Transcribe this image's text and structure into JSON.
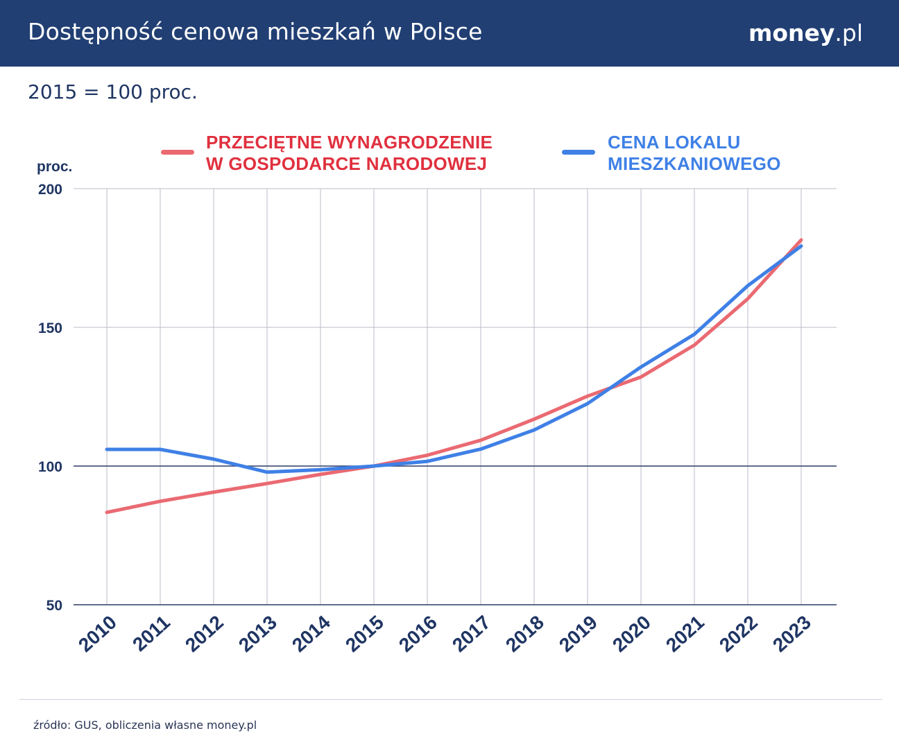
{
  "header": {
    "title": "Dostępność cenowa mieszkań w Polsce",
    "brand_bold": "money",
    "brand_light": ".pl"
  },
  "subtitle": "2015 = 100 proc.",
  "source": "źródło: GUS, obliczenia własne money.pl",
  "colors": {
    "header_bg": "#213f73",
    "wages": "#ea6a72",
    "wages_label": "#e0303e",
    "prices": "#3f80e6",
    "text": "#1f3563"
  },
  "chart_data": {
    "type": "line",
    "ylabel": "proc.",
    "ylim": [
      50,
      200
    ],
    "yticks": [
      50,
      100,
      150,
      200
    ],
    "reference_line": 100,
    "grid": true,
    "legend": "top",
    "x": [
      "2010",
      "2011",
      "2012",
      "2013",
      "2014",
      "2015",
      "2016",
      "2017",
      "2018",
      "2019",
      "2020",
      "2021",
      "2022",
      "2023"
    ],
    "series": [
      {
        "name": "PRZECIĘTNE WYNAGRODZENIE\nW GOSPODARCE NARODOWEJ",
        "color": "#ea6a72",
        "values": [
          83.3,
          87.3,
          90.6,
          93.7,
          97.0,
          100.0,
          103.9,
          109.3,
          116.9,
          125.2,
          132.1,
          143.6,
          160.3,
          181.5
        ]
      },
      {
        "name": "CENA LOKALU\nMIESZKANIOWEGO",
        "color": "#3f80e6",
        "values": [
          106.0,
          106.0,
          102.5,
          97.8,
          98.7,
          100.0,
          101.7,
          106.1,
          113.0,
          122.5,
          135.7,
          147.5,
          165.0,
          179.3
        ]
      }
    ]
  }
}
